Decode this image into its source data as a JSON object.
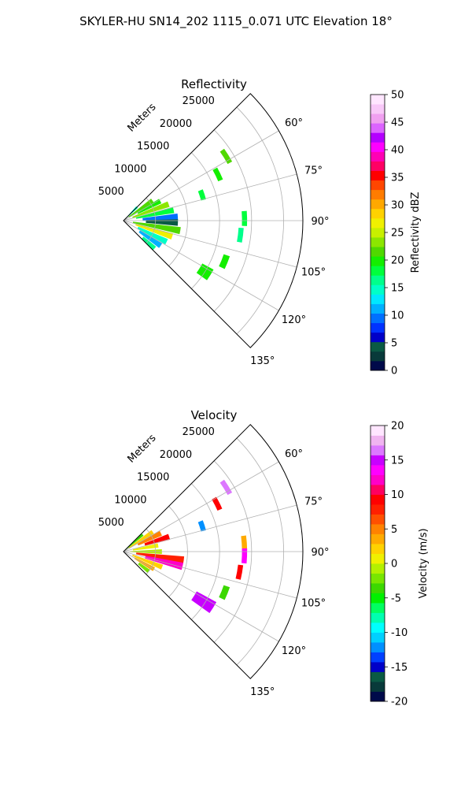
{
  "suptitle": "SKYLER-HU  SN14_202  1115_0.071 UTC Elevation 18°",
  "chart_data": [
    {
      "type": "heatmap",
      "title": "Reflectivity",
      "radius_label": "Meters",
      "range_ticks": [
        "5000",
        "10000",
        "15000",
        "20000",
        "25000"
      ],
      "range_values": [
        5000,
        10000,
        15000,
        20000,
        25000
      ],
      "r_max": 28000,
      "azimuth_ticks": [
        "60°",
        "75°",
        "90°",
        "105°",
        "120°",
        "135°"
      ],
      "azimuth_values": [
        60,
        75,
        90,
        105,
        120,
        135
      ],
      "azimuth_range": [
        45,
        135
      ],
      "grid": true,
      "colorbar": {
        "label": "Reflectivity dBZ",
        "min": 0,
        "max": 50,
        "ticks": [
          "0",
          "5",
          "10",
          "15",
          "20",
          "25",
          "30",
          "35",
          "40",
          "45",
          "50"
        ],
        "tick_values": [
          0,
          5,
          10,
          15,
          20,
          25,
          30,
          35,
          40,
          45,
          50
        ],
        "colors": [
          "#000a4a",
          "#083a3a",
          "#0a5a44",
          "#0000c8",
          "#0032ff",
          "#0070ff",
          "#00b0ff",
          "#00e8ff",
          "#00ffc8",
          "#00ff8c",
          "#00ff3c",
          "#14ee00",
          "#50d800",
          "#8ce600",
          "#c8f000",
          "#f0f000",
          "#ffd200",
          "#ffa800",
          "#ff7c00",
          "#ff4600",
          "#ff0000",
          "#ff0064",
          "#ff00b4",
          "#ff00ff",
          "#b400ff",
          "#dc64ff",
          "#f0a0f0",
          "#f8c8f8",
          "#ffe6ff"
        ]
      },
      "cells": [
        {
          "az": 45,
          "r": [
            500,
            3000
          ],
          "value": 15
        },
        {
          "az": 55,
          "r": [
            1000,
            5500
          ],
          "value": 22
        },
        {
          "az": 62,
          "r": [
            2500,
            6500
          ],
          "value": 20
        },
        {
          "az": 70,
          "r": [
            1500,
            7500
          ],
          "value": 24
        },
        {
          "az": 78,
          "r": [
            2000,
            8000
          ],
          "value": 18
        },
        {
          "az": 86,
          "r": [
            3000,
            8500
          ],
          "value": 10
        },
        {
          "az": 92,
          "r": [
            3500,
            8500
          ],
          "value": 5
        },
        {
          "az": 100,
          "r": [
            1500,
            9000
          ],
          "value": 22
        },
        {
          "az": 108,
          "r": [
            2000,
            8000
          ],
          "value": 26
        },
        {
          "az": 116,
          "r": [
            2500,
            7500
          ],
          "value": 14
        },
        {
          "az": 124,
          "r": [
            3000,
            7000
          ],
          "value": 12
        },
        {
          "az": 132,
          "r": [
            4000,
            6500
          ],
          "value": 16
        },
        {
          "az": 72,
          "r": [
            12500,
            13300
          ],
          "value": 18
        },
        {
          "az": 64,
          "r": [
            16000,
            16800
          ],
          "value": 20
        },
        {
          "az": 58,
          "r": [
            18500,
            19300
          ],
          "value": 21
        },
        {
          "az": 89,
          "r": [
            18500,
            19300
          ],
          "value": 18
        },
        {
          "az": 97,
          "r": [
            18000,
            18800
          ],
          "value": 17
        },
        {
          "az": 112,
          "r": [
            16500,
            17500
          ],
          "value": 20
        },
        {
          "az": 122,
          "r": [
            14000,
            16000
          ],
          "value": 19
        }
      ]
    },
    {
      "type": "heatmap",
      "title": "Velocity",
      "radius_label": "Meters",
      "range_ticks": [
        "5000",
        "10000",
        "15000",
        "20000",
        "25000"
      ],
      "range_values": [
        5000,
        10000,
        15000,
        20000,
        25000
      ],
      "r_max": 28000,
      "azimuth_ticks": [
        "60°",
        "75°",
        "90°",
        "105°",
        "120°",
        "135°"
      ],
      "azimuth_values": [
        60,
        75,
        90,
        105,
        120,
        135
      ],
      "azimuth_range": [
        45,
        135
      ],
      "grid": true,
      "colorbar": {
        "label": "Velocity (m/s)",
        "min": -20,
        "max": 20,
        "ticks": [
          "-20",
          "-15",
          "-10",
          "-5",
          "0",
          "5",
          "10",
          "15",
          "20"
        ],
        "tick_values": [
          -20,
          -15,
          -10,
          -5,
          0,
          5,
          10,
          15,
          20
        ],
        "colors": [
          "#000a4a",
          "#083a3a",
          "#0a5a44",
          "#0000c8",
          "#0040ff",
          "#0090ff",
          "#00d0ff",
          "#00ffff",
          "#00ffb0",
          "#00ff60",
          "#00f000",
          "#3cd800",
          "#78e600",
          "#b4f000",
          "#f0f000",
          "#ffd200",
          "#ffaa00",
          "#ff8200",
          "#ff5000",
          "#ff2000",
          "#ff0000",
          "#ff0060",
          "#ff00c8",
          "#ff00ff",
          "#c800ff",
          "#dc78ff",
          "#f0b4f0",
          "#ffe6ff"
        ]
      },
      "cells": [
        {
          "az": 48,
          "r": [
            500,
            4000
          ],
          "value": -3
        },
        {
          "az": 56,
          "r": [
            1000,
            5500
          ],
          "value": 2
        },
        {
          "az": 64,
          "r": [
            2500,
            6500
          ],
          "value": 5
        },
        {
          "az": 72,
          "r": [
            3500,
            7500
          ],
          "value": 9
        },
        {
          "az": 80,
          "r": [
            1500,
            5500
          ],
          "value": 1
        },
        {
          "az": 90,
          "r": [
            1000,
            6000
          ],
          "value": -1
        },
        {
          "az": 98,
          "r": [
            2000,
            9500
          ],
          "value": 8
        },
        {
          "az": 104,
          "r": [
            3500,
            9500
          ],
          "value": 12
        },
        {
          "az": 112,
          "r": [
            1500,
            6500
          ],
          "value": 2
        },
        {
          "az": 120,
          "r": [
            2000,
            5500
          ],
          "value": 3
        },
        {
          "az": 128,
          "r": [
            3000,
            5000
          ],
          "value": -2
        },
        {
          "az": 72,
          "r": [
            12500,
            13300
          ],
          "value": -12
        },
        {
          "az": 63,
          "r": [
            16000,
            16800
          ],
          "value": 9
        },
        {
          "az": 58,
          "r": [
            18500,
            19300
          ],
          "value": 16
        },
        {
          "az": 86,
          "r": [
            18500,
            19300
          ],
          "value": 4
        },
        {
          "az": 92,
          "r": [
            18500,
            19300
          ],
          "value": 14
        },
        {
          "az": 100,
          "r": [
            18000,
            18800
          ],
          "value": 9
        },
        {
          "az": 112,
          "r": [
            16500,
            17500
          ],
          "value": -4
        },
        {
          "az": 122,
          "r": [
            13000,
            16500
          ],
          "value": 15
        }
      ]
    }
  ]
}
